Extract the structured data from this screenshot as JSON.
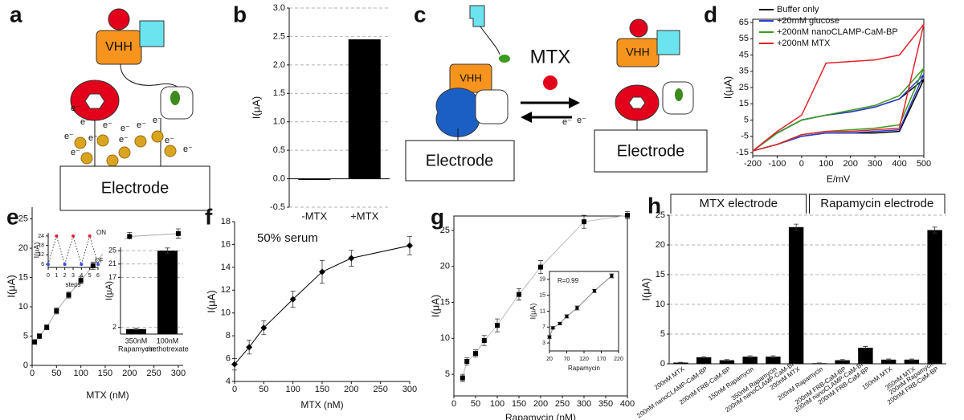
{
  "panel_labels": [
    "a",
    "b",
    "c",
    "d",
    "e",
    "f",
    "g",
    "h"
  ],
  "diagrams": {
    "a": {
      "protein": "VHH",
      "electron": "e⁻",
      "electrode": "Electrode"
    },
    "c": {
      "protein_left": "VHH",
      "protein_right": "VHH",
      "analyte": "MTX",
      "electron": "e⁻",
      "electrode_left": "Electrode",
      "electrode_right": "Electrode"
    }
  },
  "chart_data": [
    {
      "type": "bar",
      "ylabel": "I(μA)",
      "categories": [
        "-MTX",
        "+MTX"
      ],
      "values": [
        -0.02,
        2.45
      ],
      "color": "#000000",
      "ylim": [
        -0.5,
        3.0
      ],
      "yticks": [
        -0.5,
        {
          "value": 0,
          "label": "0.0"
        },
        0.5,
        {
          "value": 1,
          "label": "1.0"
        },
        1.5,
        {
          "value": 2,
          "label": "2.0"
        },
        2.5,
        {
          "value": 3,
          "label": "3.0"
        }
      ],
      "grid": true
    },
    {
      "type": "line",
      "xlabel": "E/mV",
      "ylabel": "I(μA)",
      "frame": true,
      "legend": "upper left",
      "x": [
        -200,
        -100,
        0,
        100,
        200,
        300,
        400,
        500,
        400,
        300,
        200,
        100,
        0,
        -100,
        -200
      ],
      "series": [
        {
          "name": "Buffer only",
          "color": "#000000",
          "values": [
            -14,
            -3,
            5,
            8,
            10,
            13,
            18,
            30,
            -2,
            -3,
            -3,
            -3,
            -5,
            -10,
            -14
          ]
        },
        {
          "name": "+20mM glucose",
          "color": "#2a3fd1",
          "values": [
            -14,
            -3,
            5,
            8,
            10,
            13,
            18,
            33,
            -1,
            -2,
            -3,
            -3,
            -5,
            -10,
            -14
          ]
        },
        {
          "name": "+200nM nanoCLAMP-CaM-BP",
          "color": "#3d9a1f",
          "values": [
            -14,
            -3,
            5,
            8,
            11,
            14,
            20,
            37,
            2,
            0,
            -1,
            -2,
            -4,
            -10,
            -14
          ]
        },
        {
          "name": "+200nM MTX",
          "color": "#e3232b",
          "values": [
            -14,
            -2,
            8,
            40,
            41,
            42,
            45,
            64,
            0,
            -1,
            -2,
            -2,
            -4,
            -10,
            -14
          ]
        }
      ],
      "xlim": [
        -200,
        500
      ],
      "xticks": [
        -200,
        -100,
        0,
        100,
        200,
        300,
        400,
        500
      ],
      "ylim": [
        -17,
        67
      ],
      "yticks": [
        -15,
        -5,
        5,
        15,
        25,
        35,
        45,
        55,
        65
      ]
    },
    {
      "type": "scatter",
      "xlabel": "MTX (nM)",
      "ylabel": "I(μA)",
      "line": true,
      "line_color": "#aaaaaa",
      "marker": "square",
      "x": [
        5,
        15,
        30,
        50,
        75,
        100,
        125,
        150,
        200,
        300
      ],
      "series": [
        {
          "color": "#000000",
          "values": [
            4,
            5,
            6.5,
            9.3,
            12,
            14.5,
            17,
            19.5,
            22,
            22.5
          ],
          "errors": [
            0.4,
            0.4,
            0.4,
            0.5,
            0.5,
            0.6,
            0.6,
            0.6,
            0.7,
            0.8
          ]
        }
      ],
      "xlim": [
        0,
        310
      ],
      "xticks": [
        0,
        50,
        100,
        150,
        200,
        250,
        300
      ],
      "ylim": [
        0,
        27
      ],
      "yticks": [
        0,
        5,
        10,
        15,
        20,
        25
      ]
    },
    {
      "type": "line",
      "xlabel": "steps",
      "ylabel": "I(μA)",
      "dotted": true,
      "x": [
        0,
        1,
        2,
        3,
        4,
        5,
        6
      ],
      "series": [
        {
          "color": "#444444",
          "values": [
            6,
            24,
            6,
            24,
            6,
            24,
            6
          ],
          "point_colors": [
            "#3b4fe0",
            "#e3232b",
            "#3b4fe0",
            "#e3232b",
            "#3b4fe0",
            "#e3232b",
            "#3b4fe0"
          ]
        }
      ],
      "annotations": [
        {
          "text": "ON",
          "color": "#e3232b"
        },
        {
          "text": "OFF",
          "color": "#3b4fe0"
        }
      ],
      "xlim": [
        0,
        6
      ],
      "xticks": [
        0,
        1,
        2,
        3,
        4,
        5,
        6
      ],
      "ylim": [
        4,
        26
      ],
      "yticks": [
        6,
        12,
        18,
        24
      ]
    },
    {
      "type": "bar",
      "ylabel": "I(μA)",
      "categories": [
        [
          "350nM",
          "Rapamycin"
        ],
        [
          "100nM",
          "methotrexate"
        ]
      ],
      "values": [
        1.5,
        25
      ],
      "errors": [
        0.2,
        0.8
      ],
      "color": "#000000",
      "ylim": [
        0,
        26
      ],
      "yticks": [
        2,
        17,
        21,
        25
      ],
      "grid": true
    },
    {
      "type": "scatter",
      "xlabel": "MTX (nM)",
      "ylabel": "I(μA)",
      "line": true,
      "line_color": "#000000",
      "marker": "diamond",
      "annotations": [
        {
          "text": "50% serum",
          "color": "#000000"
        }
      ],
      "x": [
        0,
        25,
        50,
        100,
        150,
        200,
        300
      ],
      "series": [
        {
          "color": "#000000",
          "values": [
            5.5,
            7,
            8.7,
            11.2,
            13.6,
            14.8,
            15.9
          ],
          "errors": [
            0.5,
            0.6,
            0.6,
            0.7,
            1.0,
            0.7,
            0.8
          ]
        }
      ],
      "xlim": [
        0,
        300
      ],
      "xticks": [
        0,
        50,
        100,
        150,
        200,
        250,
        300
      ],
      "ylim": [
        4,
        18
      ],
      "yticks": [
        4,
        6,
        8,
        10,
        12,
        14,
        16,
        18
      ]
    },
    {
      "type": "scatter",
      "xlabel": "Rapamycin (nM)",
      "ylabel": "I(μA)",
      "frame": true,
      "line": true,
      "line_color": "#bbbbbb",
      "marker": "square",
      "x": [
        20,
        30,
        50,
        70,
        100,
        150,
        200,
        300,
        400
      ],
      "series": [
        {
          "color": "#000000",
          "values": [
            4.5,
            6.8,
            7.9,
            9.7,
            11.8,
            16.1,
            19.9,
            26.2,
            27.1
          ],
          "errors": [
            0.5,
            0.5,
            0.5,
            0.7,
            0.9,
            0.8,
            0.9,
            0.9,
            0.5
          ]
        }
      ],
      "xlim": [
        0,
        400
      ],
      "xticks": [
        0,
        50,
        100,
        150,
        200,
        250,
        300,
        350,
        400
      ],
      "ylim": [
        2,
        27
      ],
      "yticks": [
        5,
        10,
        15,
        20,
        25
      ]
    },
    {
      "type": "scatter",
      "xlabel": "Rapamycin",
      "ylabel": "I(μA)",
      "frame": true,
      "line": true,
      "line_color": "#888888",
      "marker": "square",
      "annotations": [
        {
          "text": "R=0.99",
          "color": "#000000"
        }
      ],
      "x": [
        20,
        30,
        50,
        70,
        100,
        150,
        200
      ],
      "series": [
        {
          "color": "#000000",
          "values": [
            4.5,
            6.8,
            7.9,
            9.7,
            11.8,
            16.1,
            19.9
          ],
          "errors": [
            0.3,
            0.3,
            0.3,
            0.4,
            0.5,
            0.4,
            0.5
          ]
        }
      ],
      "xlim": [
        20,
        220
      ],
      "xticks": [
        20,
        70,
        120,
        170,
        220
      ],
      "ylim": [
        1,
        21
      ],
      "yticks": [
        3,
        7,
        11,
        15,
        19
      ]
    },
    {
      "type": "bar",
      "ylabel": "I(μA)",
      "group_labels": [
        "MTX electrode",
        "Rapamycin electrode"
      ],
      "color": "#000000",
      "grid": true,
      "categories": [
        [
          "200nM MTX"
        ],
        [
          "200nM nanoCLAMP-CaM-BP"
        ],
        [
          "200nM FRB-CaM-BP"
        ],
        [
          "150nM Rapamycin"
        ],
        [
          "350nM Rapamycin"
        ],
        [
          "200nM nanoCLAMP-CaM-BP",
          "200nM MTX"
        ],
        [
          "200nM Rapamycin"
        ],
        [
          "200nM FRB-CaM-BP"
        ],
        [
          "200nM nanoCLAMP-CaM-BP",
          "200nM FRB-CaM-BP"
        ],
        [
          "150nM MTX"
        ],
        [
          "350nM MTX"
        ],
        [
          "200nM Rapamycin",
          "200nM FRB-CaM-BP"
        ]
      ],
      "values": [
        0.2,
        1.1,
        0.6,
        1.2,
        1.2,
        23,
        0.1,
        0.6,
        2.7,
        0.7,
        0.7,
        22.5
      ],
      "errors": [
        0.05,
        0.1,
        0.1,
        0.15,
        0.15,
        0.5,
        0.05,
        0.1,
        0.2,
        0.1,
        0.1,
        0.5
      ],
      "ylim": [
        0,
        25
      ],
      "yticks": [
        0,
        5,
        10,
        15,
        20,
        25
      ]
    }
  ]
}
